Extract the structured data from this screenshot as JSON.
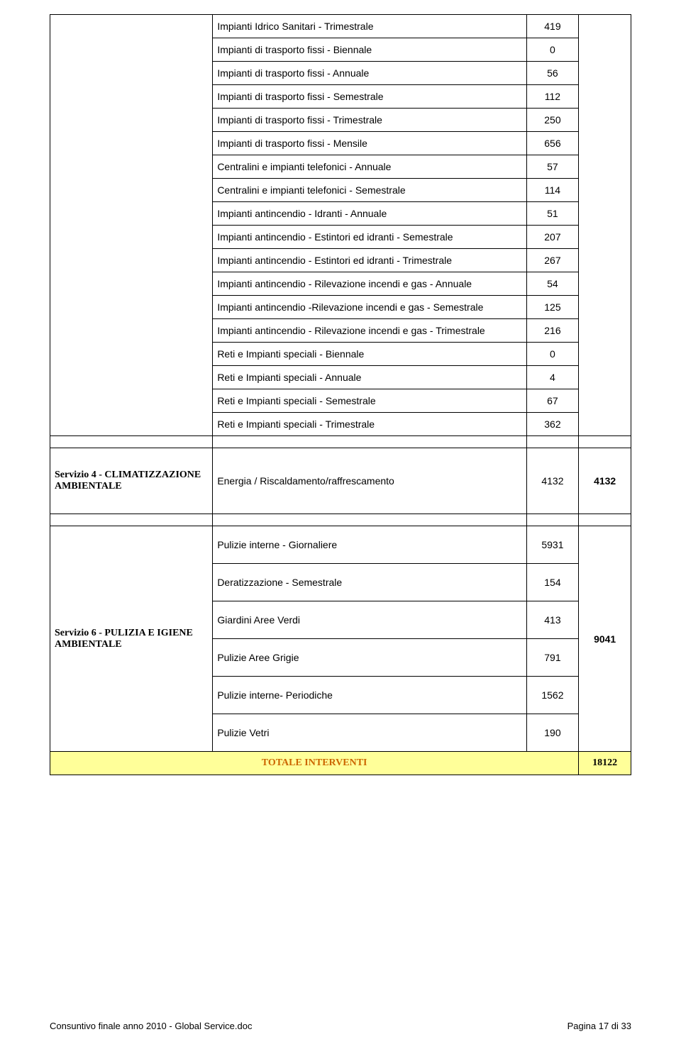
{
  "section1": {
    "rows": [
      {
        "label": "Impianti Idrico Sanitari - Trimestrale",
        "val": "419"
      },
      {
        "label": "Impianti di trasporto fissi - Biennale",
        "val": "0"
      },
      {
        "label": "Impianti di trasporto fissi - Annuale",
        "val": "56"
      },
      {
        "label": "Impianti di trasporto fissi - Semestrale",
        "val": "112"
      },
      {
        "label": "Impianti di trasporto fissi - Trimestrale",
        "val": "250"
      },
      {
        "label": "Impianti di trasporto fissi - Mensile",
        "val": "656"
      },
      {
        "label": "Centralini e impianti telefonici - Annuale",
        "val": "57"
      },
      {
        "label": "Centralini e impianti telefonici - Semestrale",
        "val": "114"
      },
      {
        "label": "Impianti antincendio - Idranti - Annuale",
        "val": "51"
      },
      {
        "label": "Impianti antincendio - Estintori ed idranti - Semestrale",
        "val": "207"
      },
      {
        "label": "Impianti antincendio - Estintori ed idranti - Trimestrale",
        "val": "267"
      },
      {
        "label": "Impianti antincendio - Rilevazione incendi e gas - Annuale",
        "val": "54"
      },
      {
        "label": "Impianti antincendio -Rilevazione incendi e gas - Semestrale",
        "val": "125"
      },
      {
        "label": "Impianti antincendio - Rilevazione incendi e gas - Trimestrale",
        "val": "216"
      },
      {
        "label": "Reti e Impianti speciali - Biennale",
        "val": "0"
      },
      {
        "label": "Reti e Impianti speciali - Annuale",
        "val": "4"
      },
      {
        "label": "Reti e Impianti speciali - Semestrale",
        "val": "67"
      },
      {
        "label": "Reti e Impianti speciali - Trimestrale",
        "val": "362"
      }
    ]
  },
  "section2": {
    "heading": "Servizio 4 - CLIMATIZZAZIONE AMBIENTALE",
    "label": "Energia / Riscaldamento/raffrescamento",
    "val1": "4132",
    "val2": "4132"
  },
  "section3": {
    "heading": "Servizio 6 - PULIZIA E IGIENE AMBIENTALE",
    "total": "9041",
    "rows": [
      {
        "label": "Pulizie interne - Giornaliere",
        "val": "5931"
      },
      {
        "label": "Deratizzazione - Semestrale",
        "val": "154"
      },
      {
        "label": "Giardini Aree Verdi",
        "val": "413"
      },
      {
        "label": "Pulizie Aree Grigie",
        "val": "791"
      },
      {
        "label": "Pulizie interne- Periodiche",
        "val": "1562"
      },
      {
        "label": "Pulizie Vetri",
        "val": "190"
      }
    ]
  },
  "total": {
    "label": "TOTALE INTERVENTI",
    "val": "18122"
  },
  "footer": {
    "left": "Consuntivo finale anno 2010 - Global Service.doc",
    "right": "Pagina 17 di 33"
  },
  "colors": {
    "highlight_bg": "#ffff99",
    "highlight_text": "#cc6600",
    "border": "#000000",
    "page_bg": "#ffffff"
  }
}
